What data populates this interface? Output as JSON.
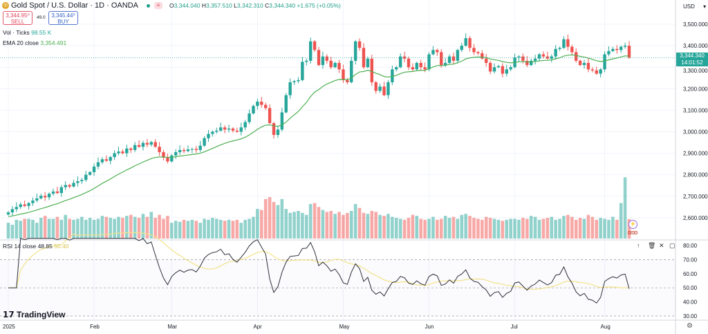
{
  "header": {
    "symbol_title": "Gold Spot / U.S. Dollar · 1D · OANDA",
    "ohlc": {
      "o_label": "O",
      "o": "3,344.040",
      "h_label": "H",
      "h": "3,357.510",
      "l_label": "L",
      "l": "3,342.310",
      "c_label": "C",
      "c": "3,344.340",
      "change": "+1.675 (+0.05%)"
    },
    "sell": {
      "price": "3,344.95⁰",
      "label": "SELL"
    },
    "buy": {
      "price": "3,345.44⁰",
      "label": "BUY"
    },
    "spread": "49.0"
  },
  "indicators": {
    "volume": {
      "label": "Vol · Ticks",
      "value": "98.55 K"
    },
    "ema": {
      "label": "EMA 20 close",
      "value": "3,354.491"
    },
    "rsi": {
      "label": "RSI 14 close",
      "value": "48.85",
      "ma_value": "50.40"
    }
  },
  "price_axis": {
    "currency": "USD",
    "ticks": [
      "3,500.000",
      "3,400.000",
      "3,300.000",
      "3,200.000",
      "3,100.000",
      "3,000.000",
      "2,900.000",
      "2,800.000",
      "2,700.000",
      "2,600.000"
    ],
    "last_price": "3,344.340",
    "countdown": "14:01:52"
  },
  "rsi_axis": {
    "ticks": [
      "80.00",
      "70.00",
      "60.00",
      "50.00",
      "40.00",
      "30.00"
    ]
  },
  "brand": "TradingView",
  "colors": {
    "up": "#26a69a",
    "down": "#ef5350",
    "ema": "#4caf50",
    "rsi": "#2a2e39",
    "rsi_ma": "#f2e38a",
    "accent": "#26a69a"
  },
  "chart_data": {
    "type": "candlestick",
    "title": "Gold Spot / U.S. Dollar · 1D · OANDA",
    "ylim": [
      2560,
      3520
    ],
    "grid": true,
    "months": [
      {
        "label": "2025",
        "closes": [
          2625,
          2640,
          2650,
          2662,
          2655,
          2668,
          2680,
          2690,
          2702,
          2695,
          2712,
          2722,
          2715,
          2742,
          2752,
          2745,
          2762,
          2770,
          2776,
          2800,
          2812
        ],
        "volumes": [
          80,
          70,
          95,
          90,
          100,
          100,
          95,
          80,
          105,
          115,
          100,
          100,
          110,
          95,
          120,
          100,
          95,
          100,
          110,
          95,
          105
        ]
      },
      {
        "label": "Feb",
        "closes": [
          2838,
          2858,
          2872,
          2865,
          2882,
          2900,
          2908,
          2900,
          2922,
          2915,
          2938,
          2930,
          2948,
          2940,
          2952,
          2930,
          2905,
          2880,
          2862
        ],
        "volumes": [
          95,
          100,
          115,
          110,
          105,
          100,
          110,
          105,
          115,
          120,
          110,
          105,
          125,
          110,
          135,
          105,
          120,
          100,
          115
        ]
      },
      {
        "label": "Mar",
        "closes": [
          2890,
          2905,
          2915,
          2910,
          2918,
          2920,
          2915,
          2935,
          2970,
          2990,
          3000,
          3005,
          3020,
          3010,
          3015,
          3005,
          3000,
          3020,
          3045,
          3085,
          3120
        ],
        "volumes": [
          80,
          90,
          85,
          95,
          90,
          95,
          90,
          80,
          100,
          95,
          105,
          100,
          95,
          90,
          95,
          90,
          95,
          80,
          95,
          100,
          110
        ]
      },
      {
        "label": "Apr",
        "closes": [
          3140,
          3125,
          3110,
          3040,
          2985,
          3010,
          3090,
          3170,
          3230,
          3235,
          3240,
          3325,
          3330,
          3420,
          3380,
          3310,
          3350,
          3330,
          3300,
          3320,
          3290
        ],
        "volumes": [
          150,
          145,
          200,
          210,
          185,
          170,
          200,
          150,
          130,
          135,
          140,
          130,
          120,
          175,
          180,
          160,
          145,
          135,
          140,
          125,
          135
        ]
      },
      {
        "label": "May",
        "closes": [
          3240,
          3230,
          3330,
          3420,
          3390,
          3300,
          3340,
          3230,
          3190,
          3210,
          3170,
          3230,
          3290,
          3300,
          3350,
          3340,
          3300,
          3290,
          3320,
          3300,
          3290
        ],
        "volumes": [
          120,
          130,
          140,
          175,
          155,
          130,
          125,
          140,
          135,
          120,
          115,
          125,
          110,
          105,
          100,
          95,
          105,
          120,
          115,
          100,
          95
        ]
      },
      {
        "label": "Jun",
        "closes": [
          3360,
          3380,
          3370,
          3310,
          3320,
          3350,
          3330,
          3380,
          3400,
          3435,
          3390,
          3370,
          3365,
          3340,
          3320,
          3280,
          3300,
          3305,
          3270,
          3290,
          3300
        ],
        "volumes": [
          100,
          110,
          95,
          100,
          115,
          105,
          110,
          100,
          120,
          125,
          115,
          105,
          100,
          95,
          110,
          105,
          100,
          95,
          90,
          95,
          100
        ]
      },
      {
        "label": "Jul",
        "closes": [
          3345,
          3350,
          3330,
          3310,
          3330,
          3340,
          3360,
          3350,
          3340,
          3350,
          3385,
          3390,
          3430,
          3395,
          3370,
          3330,
          3310,
          3320,
          3290,
          3285,
          3270,
          3290
        ],
        "volumes": [
          100,
          95,
          105,
          100,
          115,
          110,
          95,
          100,
          105,
          110,
          95,
          100,
          115,
          120,
          110,
          95,
          105,
          100,
          120,
          110,
          95,
          105
        ]
      },
      {
        "label": "Aug",
        "closes": [
          3360,
          3375,
          3385,
          3380,
          3395,
          3400,
          3344.34
        ],
        "volumes": [
          100,
          95,
          110,
          95,
          180,
          310,
          98.55
        ]
      }
    ],
    "rsi": {
      "length": 14,
      "levels": [
        70,
        50,
        30
      ],
      "ylim": [
        25,
        85
      ]
    },
    "ema_length": 20
  }
}
